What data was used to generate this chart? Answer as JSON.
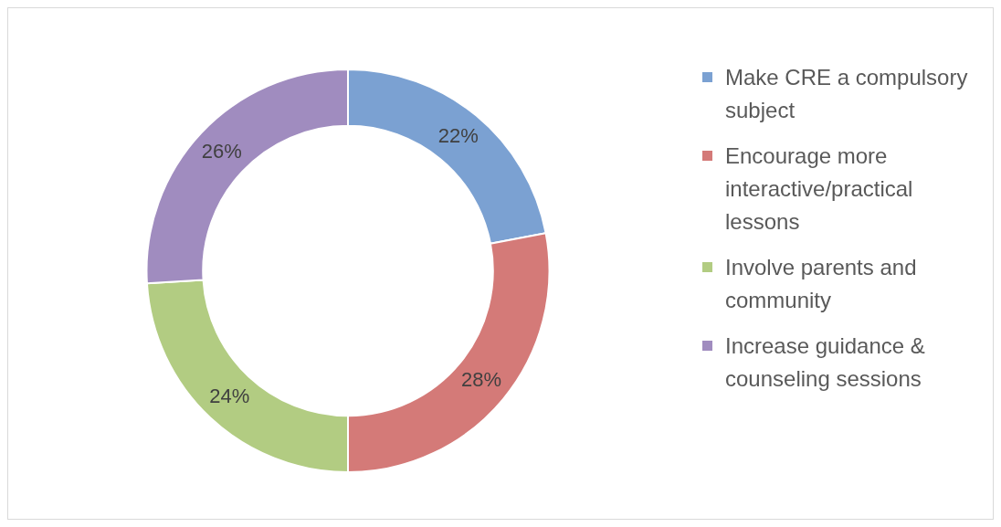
{
  "chart_data": {
    "type": "donut",
    "categories": [
      "Make CRE a compulsory subject",
      "Encourage more interactive/practical lessons",
      "Involve parents and community",
      "Increase guidance & counseling sessions"
    ],
    "values": [
      22,
      28,
      24,
      26
    ],
    "colors": [
      "#7ba1d2",
      "#d47a78",
      "#b2cc82",
      "#a08cbf"
    ],
    "value_labels": [
      "22%",
      "28%",
      "24%",
      "26%"
    ],
    "legend": "right"
  }
}
